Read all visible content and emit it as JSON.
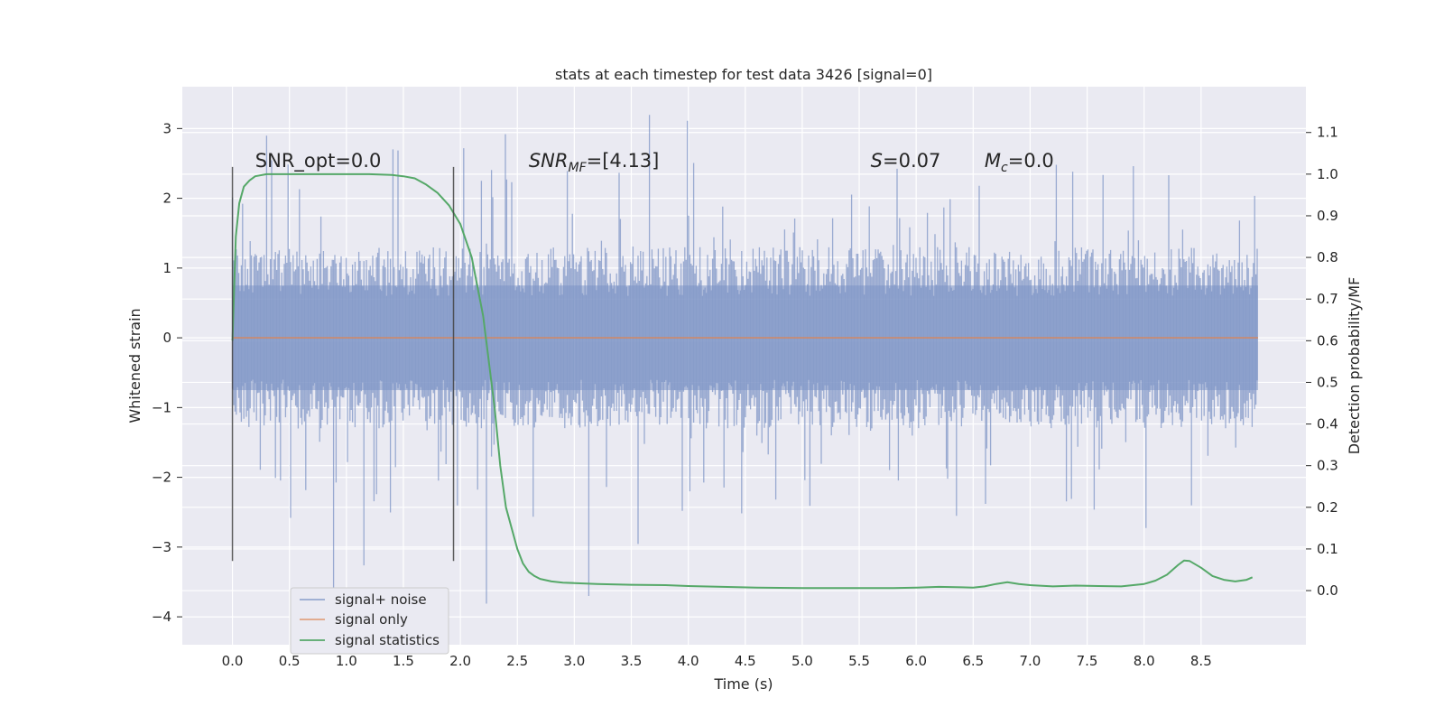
{
  "chart_data": {
    "type": "line",
    "title": "stats at each timestep for test data 3426 [signal=0]",
    "xlabel": "Time (s)",
    "ylabel": "Whitened strain",
    "ylabel_right": "Detection probability/MF",
    "xlim": [
      -0.44,
      9.42
    ],
    "ylim": [
      -4.4,
      3.6
    ],
    "ylim_right": [
      -0.13,
      1.21
    ],
    "x_ticks": [
      0.0,
      0.5,
      1.0,
      1.5,
      2.0,
      2.5,
      3.0,
      3.5,
      4.0,
      4.5,
      5.0,
      5.5,
      6.0,
      6.5,
      7.0,
      7.5,
      8.0,
      8.5
    ],
    "x_tick_labels": [
      "0.0",
      "0.5",
      "1.0",
      "1.5",
      "2.0",
      "2.5",
      "3.0",
      "3.5",
      "4.0",
      "4.5",
      "5.0",
      "5.5",
      "6.0",
      "6.5",
      "7.0",
      "7.5",
      "8.0",
      "8.5"
    ],
    "y_ticks": [
      -4,
      -3,
      -2,
      -1,
      0,
      1,
      2,
      3
    ],
    "y_tick_labels": [
      "−4",
      "−3",
      "−2",
      "−1",
      "0",
      "1",
      "2",
      "3"
    ],
    "y_right_ticks": [
      0.0,
      0.1,
      0.2,
      0.3,
      0.4,
      0.5,
      0.6,
      0.7,
      0.8,
      0.9,
      1.0,
      1.1
    ],
    "y_right_tick_labels": [
      "0.0",
      "0.1",
      "0.2",
      "0.3",
      "0.4",
      "0.5",
      "0.6",
      "0.7",
      "0.8",
      "0.9",
      "1.0",
      "1.1"
    ],
    "grid": true,
    "legend_position": "lower-left",
    "vlines": [
      0.0,
      1.94
    ],
    "vline_range": [
      -3.2,
      2.45
    ],
    "annotations": [
      {
        "text": "SNR_opt=0.0",
        "x": 0.2,
        "y": 2.45
      },
      {
        "base": "SNR",
        "sub": "MF",
        "rest": "=[4.13]",
        "x": 2.6,
        "y": 2.45
      },
      {
        "base": "S",
        "sub": "",
        "rest": "=0.07",
        "x": 5.6,
        "y": 2.45
      },
      {
        "base": "M",
        "sub": "c",
        "rest": "=0.0",
        "x": 6.6,
        "y": 2.45
      }
    ],
    "noise_envelope": {
      "x_range": [
        0.0,
        9.0
      ],
      "p95_abs": 1.3,
      "max_peak": 3.2,
      "min_trough": -4.0
    },
    "series": [
      {
        "name": "signal+ noise",
        "axis": "left",
        "color": "#7a91c4",
        "envelope": true
      },
      {
        "name": "signal only",
        "axis": "left",
        "color": "#dd8452",
        "x": [
          0.0,
          9.0
        ],
        "y": [
          0.0,
          0.0
        ]
      },
      {
        "name": "signal statistics",
        "axis": "right",
        "color": "#55a868",
        "x": [
          0.0,
          0.03,
          0.06,
          0.1,
          0.15,
          0.2,
          0.3,
          0.5,
          0.8,
          1.0,
          1.2,
          1.4,
          1.5,
          1.6,
          1.7,
          1.8,
          1.9,
          2.0,
          2.1,
          2.2,
          2.3,
          2.35,
          2.4,
          2.45,
          2.5,
          2.55,
          2.6,
          2.65,
          2.7,
          2.8,
          2.9,
          3.0,
          3.2,
          3.5,
          3.8,
          4.0,
          4.3,
          4.6,
          5.0,
          5.4,
          5.8,
          6.0,
          6.2,
          6.4,
          6.5,
          6.6,
          6.7,
          6.8,
          6.9,
          7.0,
          7.2,
          7.4,
          7.6,
          7.8,
          8.0,
          8.1,
          8.2,
          8.3,
          8.35,
          8.4,
          8.5,
          8.6,
          8.7,
          8.8,
          8.9,
          8.95
        ],
        "y": [
          0.6,
          0.85,
          0.93,
          0.97,
          0.985,
          0.995,
          1.0,
          1.0,
          1.0,
          1.0,
          1.0,
          0.998,
          0.995,
          0.99,
          0.975,
          0.955,
          0.925,
          0.88,
          0.8,
          0.66,
          0.44,
          0.3,
          0.2,
          0.15,
          0.1,
          0.065,
          0.045,
          0.035,
          0.028,
          0.022,
          0.019,
          0.018,
          0.016,
          0.014,
          0.013,
          0.011,
          0.009,
          0.007,
          0.006,
          0.006,
          0.006,
          0.007,
          0.009,
          0.008,
          0.007,
          0.01,
          0.016,
          0.02,
          0.016,
          0.013,
          0.01,
          0.012,
          0.011,
          0.01,
          0.016,
          0.024,
          0.038,
          0.062,
          0.072,
          0.071,
          0.055,
          0.035,
          0.026,
          0.022,
          0.026,
          0.032
        ]
      }
    ]
  }
}
